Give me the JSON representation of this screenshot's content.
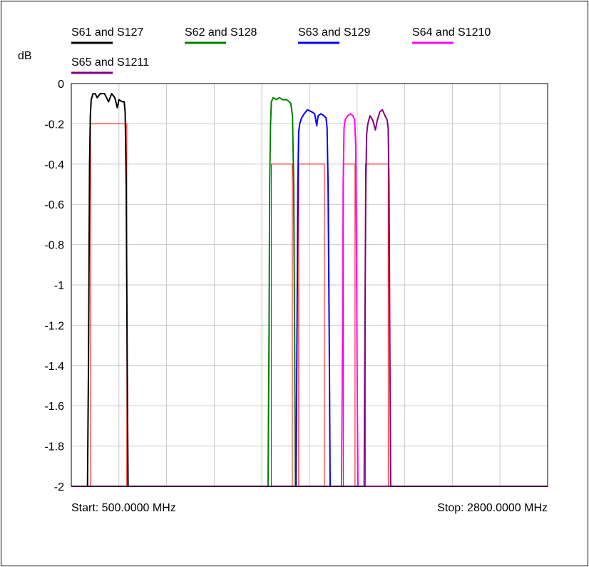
{
  "chart_data": {
    "type": "line",
    "ylabel": "dB",
    "ylim": [
      -2,
      0
    ],
    "yticks": [
      "0",
      "-0.2",
      "-0.4",
      "-0.6",
      "-0.8",
      "-1",
      "-1.2",
      "-1.4",
      "-1.6",
      "-1.8",
      "-2"
    ],
    "xlim": [
      500,
      2800
    ],
    "x_unit": "MHz",
    "start_label": "Start: 500.0000 MHz",
    "stop_label": "Stop: 2800.0000 MHz",
    "grid": true,
    "legend_position": "top",
    "series": [
      {
        "name": "S61 and S127",
        "color": "#000000",
        "points": [
          [
            578,
            -2
          ],
          [
            583,
            -1.4
          ],
          [
            588,
            -0.4
          ],
          [
            592,
            -0.16
          ],
          [
            596,
            -0.08
          ],
          [
            605,
            -0.05
          ],
          [
            615,
            -0.05
          ],
          [
            625,
            -0.07
          ],
          [
            640,
            -0.05
          ],
          [
            660,
            -0.05
          ],
          [
            680,
            -0.09
          ],
          [
            695,
            -0.05
          ],
          [
            710,
            -0.07
          ],
          [
            722,
            -0.12
          ],
          [
            730,
            -0.08
          ],
          [
            745,
            -0.09
          ],
          [
            755,
            -0.09
          ],
          [
            760,
            -0.14
          ],
          [
            765,
            -0.5
          ],
          [
            770,
            -1.4
          ],
          [
            774,
            -2
          ]
        ]
      },
      {
        "name": "S62 and S128",
        "color": "#008000",
        "points": [
          [
            1450,
            -2
          ],
          [
            1455,
            -1.2
          ],
          [
            1458,
            -0.5
          ],
          [
            1462,
            -0.2
          ],
          [
            1466,
            -0.09
          ],
          [
            1475,
            -0.07
          ],
          [
            1490,
            -0.08
          ],
          [
            1505,
            -0.07
          ],
          [
            1520,
            -0.08
          ],
          [
            1540,
            -0.08
          ],
          [
            1552,
            -0.09
          ],
          [
            1560,
            -0.1
          ],
          [
            1568,
            -0.16
          ],
          [
            1574,
            -0.5
          ],
          [
            1578,
            -1.2
          ],
          [
            1582,
            -2
          ]
        ]
      },
      {
        "name": "S63 and S129",
        "color": "#0000ff",
        "points": [
          [
            1585,
            -2
          ],
          [
            1590,
            -1.2
          ],
          [
            1594,
            -0.5
          ],
          [
            1598,
            -0.24
          ],
          [
            1603,
            -0.2
          ],
          [
            1612,
            -0.17
          ],
          [
            1625,
            -0.15
          ],
          [
            1640,
            -0.13
          ],
          [
            1660,
            -0.14
          ],
          [
            1675,
            -0.15
          ],
          [
            1685,
            -0.21
          ],
          [
            1692,
            -0.16
          ],
          [
            1705,
            -0.15
          ],
          [
            1720,
            -0.16
          ],
          [
            1730,
            -0.17
          ],
          [
            1735,
            -0.22
          ],
          [
            1740,
            -0.5
          ],
          [
            1745,
            -1.2
          ],
          [
            1750,
            -2
          ]
        ]
      },
      {
        "name": "S64 and S1210",
        "color": "#ff00ff",
        "points": [
          [
            1805,
            -2
          ],
          [
            1810,
            -1.2
          ],
          [
            1813,
            -0.5
          ],
          [
            1817,
            -0.22
          ],
          [
            1822,
            -0.18
          ],
          [
            1835,
            -0.16
          ],
          [
            1848,
            -0.15
          ],
          [
            1860,
            -0.16
          ],
          [
            1868,
            -0.18
          ],
          [
            1873,
            -0.3
          ],
          [
            1877,
            -0.8
          ],
          [
            1881,
            -1.6
          ],
          [
            1884,
            -2
          ]
        ]
      },
      {
        "name": "S65 and S1211",
        "color": "#800080",
        "points": [
          [
            1914,
            -2
          ],
          [
            1918,
            -1.2
          ],
          [
            1922,
            -0.5
          ],
          [
            1926,
            -0.25
          ],
          [
            1932,
            -0.2
          ],
          [
            1942,
            -0.16
          ],
          [
            1955,
            -0.18
          ],
          [
            1968,
            -0.23
          ],
          [
            1978,
            -0.18
          ],
          [
            1990,
            -0.14
          ],
          [
            2002,
            -0.13
          ],
          [
            2015,
            -0.16
          ],
          [
            2025,
            -0.18
          ],
          [
            2030,
            -0.22
          ],
          [
            2034,
            -0.5
          ],
          [
            2038,
            -1.3
          ],
          [
            2042,
            -2
          ]
        ]
      }
    ],
    "limit_lines": {
      "color": "#ff0000",
      "masks": [
        {
          "x1": 593,
          "x2": 768,
          "level": -0.2
        },
        {
          "x1": 1466,
          "x2": 1567,
          "level": -0.4
        },
        {
          "x1": 1598,
          "x2": 1722,
          "level": -0.4
        },
        {
          "x1": 1814,
          "x2": 1870,
          "level": -0.4
        },
        {
          "x1": 1920,
          "x2": 2030,
          "level": -0.4
        }
      ]
    }
  }
}
